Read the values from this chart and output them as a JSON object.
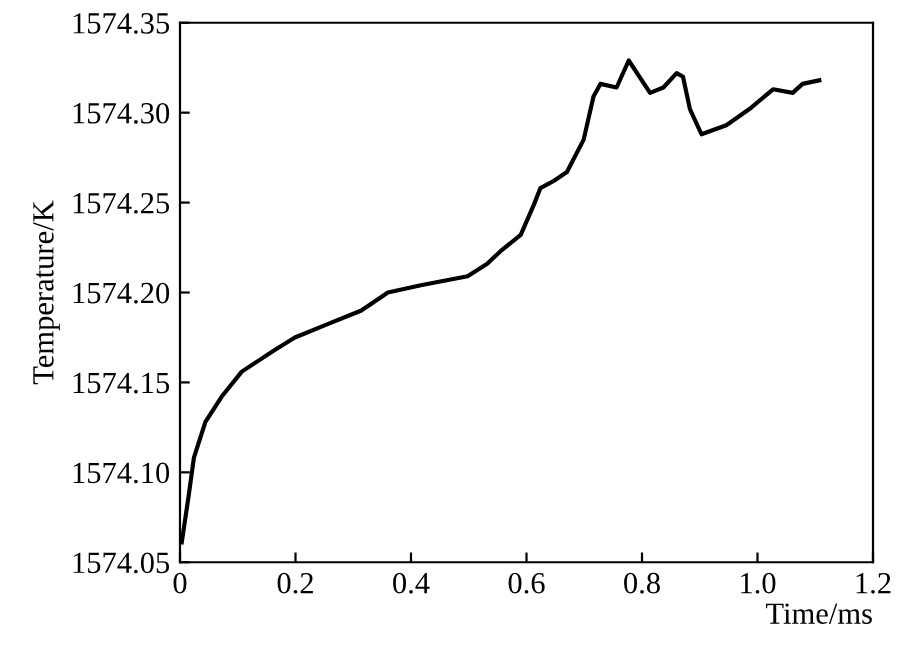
{
  "chart_data": {
    "type": "line",
    "xlabel": "Time/ms",
    "ylabel": "Temperature/K",
    "series": [
      {
        "color": "#000000",
        "x": [
          0.003,
          0.015,
          0.024,
          0.044,
          0.072,
          0.107,
          0.164,
          0.199,
          0.245,
          0.314,
          0.36,
          0.417,
          0.498,
          0.532,
          0.555,
          0.59,
          0.613,
          0.624,
          0.647,
          0.67,
          0.699,
          0.716,
          0.728,
          0.756,
          0.777,
          0.814,
          0.837,
          0.86,
          0.871,
          0.883,
          0.903,
          0.946,
          0.986,
          1.027,
          1.061,
          1.078,
          1.107
        ],
        "values": [
          1574.061,
          1574.087,
          1574.108,
          1574.128,
          1574.142,
          1574.156,
          1574.168,
          1574.175,
          1574.181,
          1574.19,
          1574.2,
          1574.204,
          1574.209,
          1574.216,
          1574.223,
          1574.232,
          1574.249,
          1574.258,
          1574.262,
          1574.267,
          1574.285,
          1574.309,
          1574.316,
          1574.314,
          1574.329,
          1574.311,
          1574.314,
          1574.322,
          1574.32,
          1574.302,
          1574.288,
          1574.293,
          1574.302,
          1574.313,
          1574.311,
          1574.316,
          1574.318
        ]
      }
    ],
    "xlim": [
      0,
      1.2
    ],
    "xticks": [
      0,
      0.2,
      0.4,
      0.6,
      0.8,
      {
        "value": 1.0,
        "label": "1.0"
      },
      1.2
    ],
    "ylim": [
      1574.05,
      1574.35
    ],
    "yticks": [
      1574.05,
      {
        "value": 1574.1,
        "label": "1574.10"
      },
      1574.15,
      {
        "value": 1574.2,
        "label": "1574.20"
      },
      1574.25,
      {
        "value": 1574.3,
        "label": "1574.30"
      },
      1574.35
    ],
    "grid": false,
    "legend": false,
    "marker": "none",
    "line_style": "solid"
  }
}
